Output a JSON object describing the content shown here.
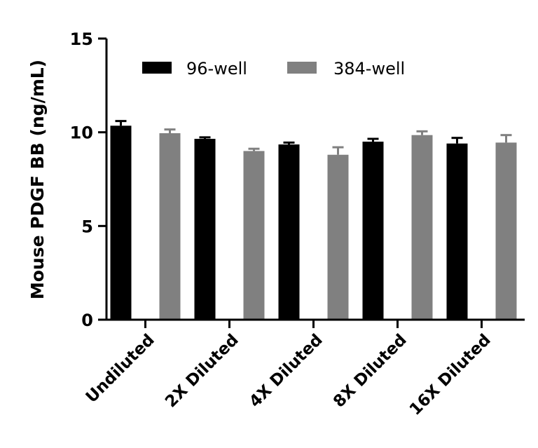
{
  "chart_data": {
    "type": "bar",
    "title": "",
    "xlabel": "",
    "ylabel": "Mouse PDGF BB (ng/mL)",
    "ylim": [
      0,
      15
    ],
    "yticks": [
      0,
      5,
      10,
      15
    ],
    "categories": [
      "Undiluted",
      "2X Diluted",
      "4X Diluted",
      "8X Diluted",
      "16X Diluted"
    ],
    "series": [
      {
        "name": "96-well",
        "color": "#000000",
        "values": [
          10.35,
          9.65,
          9.35,
          9.5,
          9.4
        ],
        "errors": [
          0.25,
          0.08,
          0.1,
          0.15,
          0.3
        ]
      },
      {
        "name": "384-well",
        "color": "#808080",
        "values": [
          9.95,
          9.0,
          8.8,
          9.85,
          9.45
        ],
        "errors": [
          0.2,
          0.12,
          0.4,
          0.2,
          0.4
        ]
      }
    ],
    "legend_position": "top",
    "grid": false
  }
}
